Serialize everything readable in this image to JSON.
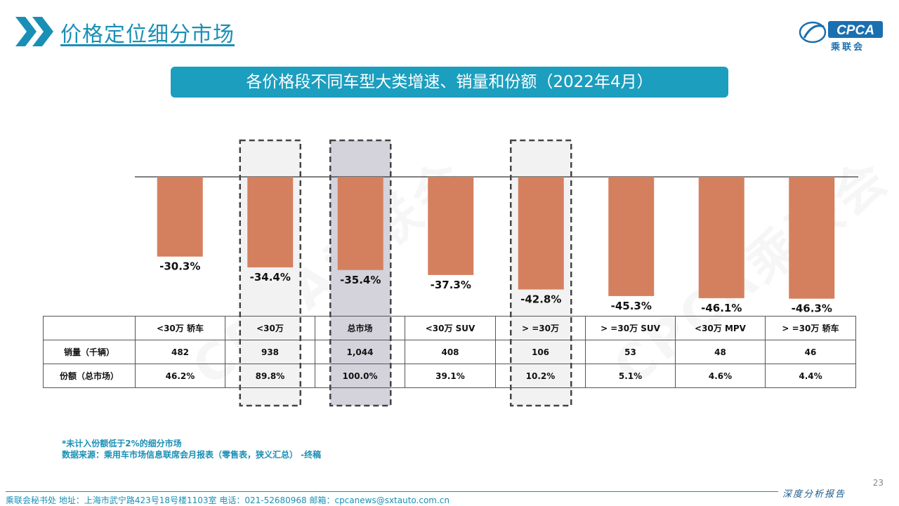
{
  "header": {
    "title": "价格定位细分市场"
  },
  "logo": {
    "name": "CPCA",
    "subtitle": "乘联会"
  },
  "banner": {
    "title": "各价格段不同车型大类增速、销量和份额（2022年4月）"
  },
  "chart_data": {
    "type": "bar",
    "categories": [
      "<30万 轿车",
      "<30万",
      "总市场",
      "<30万 SUV",
      ">=30万",
      ">=30万 SUV",
      "<30万 MPV",
      ">=30万 轿车"
    ],
    "values": [
      -30.3,
      -34.4,
      -35.4,
      -37.3,
      -42.8,
      -45.3,
      -46.1,
      -46.3
    ],
    "value_labels": [
      "-30.3%",
      "-34.4%",
      "-35.4%",
      "-37.3%",
      "-42.8%",
      "-45.3%",
      "-46.1%",
      "-46.3%"
    ],
    "ylim": [
      -50,
      0
    ],
    "bar_color": "#d4805f",
    "highlight_indices": [
      1,
      2,
      4
    ],
    "highlight_fill": [
      "#f2f2f2",
      "#d4d2db",
      "#f2f2f2"
    ],
    "title": "",
    "xlabel": "",
    "ylabel": ""
  },
  "table": {
    "headers": [
      "<30万 轿车",
      "<30万",
      "总市场",
      "<30万 SUV",
      "> =30万",
      "> =30万 SUV",
      "<30万 MPV",
      "> =30万 轿车"
    ],
    "rows": [
      {
        "label": "销量（千辆）",
        "values": [
          "482",
          "938",
          "1,044",
          "408",
          "106",
          "53",
          "48",
          "46"
        ]
      },
      {
        "label": "份额（总市场）",
        "values": [
          "46.2%",
          "89.8%",
          "100.0%",
          "39.1%",
          "10.2%",
          "5.1%",
          "4.6%",
          "4.4%"
        ]
      }
    ]
  },
  "footnote": {
    "line1": "*未计入份额低于2%的细分市场",
    "line2": "数据来源：乘用车市场信息联席会月报表（零售表，狭义汇总）  -终稿"
  },
  "footer": {
    "info": "乘联会秘书处   地址：上海市武宁路423号18号楼1103室   电话：021-52680968   邮箱：cpcanews@sxtauto.com.cn",
    "report_tag": "深度分析报告",
    "page_number": "23"
  },
  "colors": {
    "accent": "#1a8fb5",
    "banner": "#1c9ebf",
    "bar": "#d4805f"
  }
}
